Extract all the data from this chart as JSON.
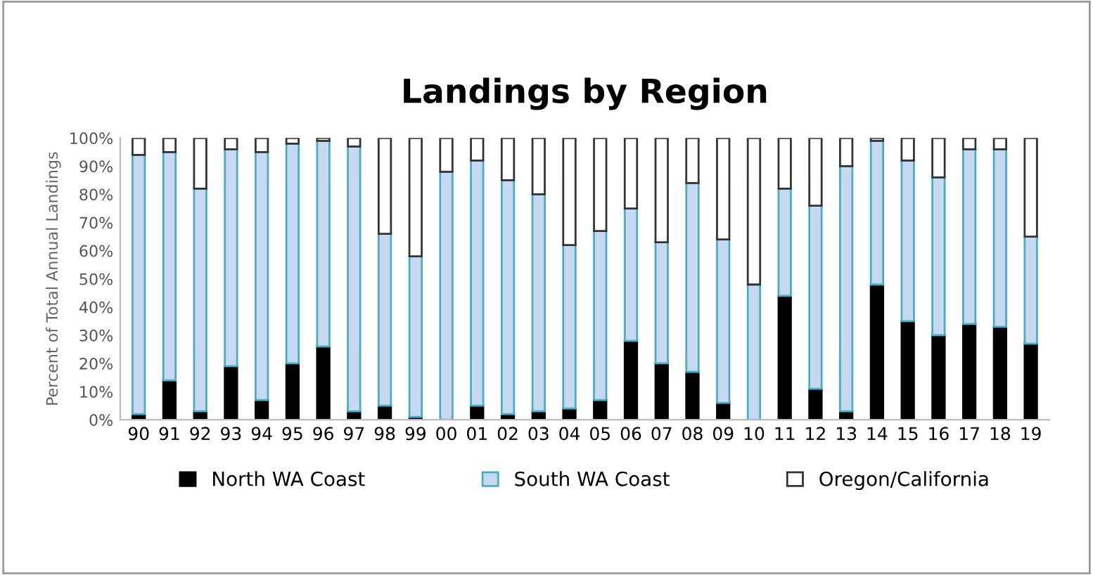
{
  "chart_data": {
    "type": "bar",
    "title": "Landings by Region",
    "ylabel": "Percent of Total Annual Landings",
    "categories": [
      "90",
      "91",
      "92",
      "93",
      "94",
      "95",
      "96",
      "97",
      "98",
      "99",
      "00",
      "01",
      "02",
      "03",
      "04",
      "05",
      "06",
      "07",
      "08",
      "09",
      "10",
      "11",
      "12",
      "13",
      "14",
      "15",
      "16",
      "17",
      "18",
      "19"
    ],
    "stacked": true,
    "legend": "bottom",
    "grid": false,
    "ylim": [
      0,
      100
    ],
    "yticks": [
      {
        "value": 0,
        "label": "0%"
      },
      {
        "value": 10,
        "label": "10%"
      },
      {
        "value": 20,
        "label": "20%"
      },
      {
        "value": 30,
        "label": "30%"
      },
      {
        "value": 40,
        "label": "40%"
      },
      {
        "value": 50,
        "label": "50%"
      },
      {
        "value": 60,
        "label": "60%"
      },
      {
        "value": 70,
        "label": "70%"
      },
      {
        "value": 80,
        "label": "80%"
      },
      {
        "value": 90,
        "label": "90%"
      },
      {
        "value": 100,
        "label": "100%"
      }
    ],
    "series": [
      {
        "name": "North WA Coast",
        "color": "#000000",
        "values": [
          2,
          14,
          3,
          19,
          7,
          20,
          26,
          3,
          5,
          1,
          0,
          5,
          2,
          3,
          4,
          7,
          28,
          20,
          17,
          6,
          0,
          44,
          11,
          3,
          48,
          35,
          30,
          34,
          33,
          27
        ]
      },
      {
        "name": "South WA Coast",
        "color": "#c6d9f1",
        "values": [
          92,
          81,
          79,
          77,
          88,
          78,
          73,
          94,
          61,
          57,
          88,
          87,
          83,
          77,
          58,
          60,
          47,
          43,
          67,
          58,
          48,
          38,
          65,
          87,
          51,
          57,
          56,
          62,
          63,
          38
        ]
      },
      {
        "name": "Oregon/California",
        "color": "#ffffff",
        "values": [
          6,
          5,
          18,
          4,
          5,
          2,
          1,
          3,
          34,
          42,
          12,
          8,
          15,
          20,
          38,
          33,
          25,
          37,
          16,
          36,
          52,
          18,
          24,
          10,
          1,
          8,
          14,
          4,
          4,
          35
        ]
      }
    ]
  }
}
